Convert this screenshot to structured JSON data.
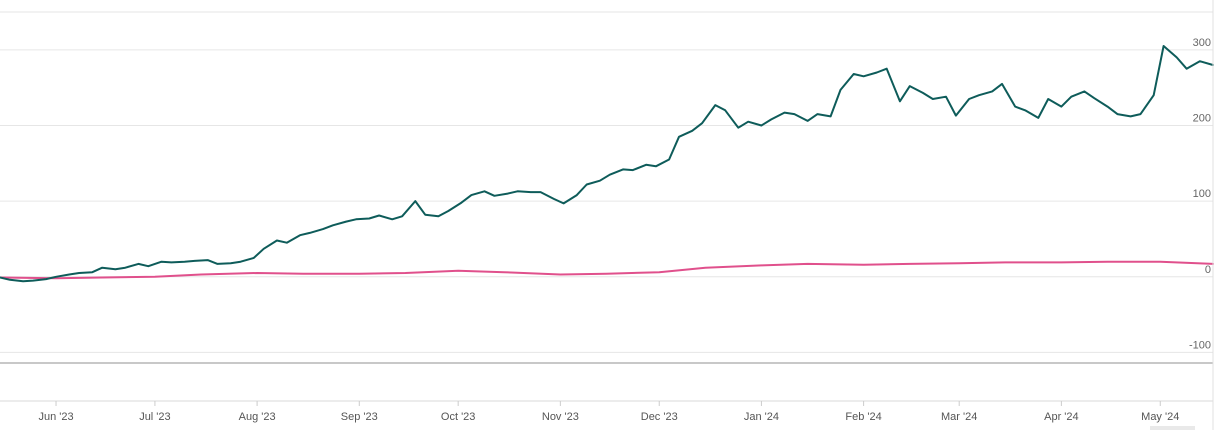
{
  "chart_data": {
    "type": "line",
    "title": "",
    "xlabel": "",
    "ylabel": "",
    "x_range": [
      "2023-05-15",
      "2024-05-17"
    ],
    "ylim": [
      -110,
      350
    ],
    "y_ticks": [
      {
        "value": 300,
        "label": "300"
      },
      {
        "value": 200,
        "label": "200"
      },
      {
        "value": 100,
        "label": "100"
      },
      {
        "value": 0,
        "label": "0"
      },
      {
        "value": -100,
        "label": "-100"
      }
    ],
    "x_ticks": [
      {
        "date": "2023-06-01",
        "label": "Jun '23"
      },
      {
        "date": "2023-07-01",
        "label": "Jul '23"
      },
      {
        "date": "2023-08-01",
        "label": "Aug '23"
      },
      {
        "date": "2023-09-01",
        "label": "Sep '23"
      },
      {
        "date": "2023-10-01",
        "label": "Oct '23"
      },
      {
        "date": "2023-11-01",
        "label": "Nov '23"
      },
      {
        "date": "2023-12-01",
        "label": "Dec '23"
      },
      {
        "date": "2024-01-01",
        "label": "Jan '24"
      },
      {
        "date": "2024-02-01",
        "label": "Feb '24"
      },
      {
        "date": "2024-03-01",
        "label": "Mar '24"
      },
      {
        "date": "2024-04-01",
        "label": "Apr '24"
      },
      {
        "date": "2024-05-01",
        "label": "May '24"
      }
    ],
    "grid": true,
    "series": [
      {
        "color": "#0e5c5a",
        "points": [
          [
            "2023-05-15",
            -1
          ],
          [
            "2023-05-18",
            -4
          ],
          [
            "2023-05-22",
            -6
          ],
          [
            "2023-05-25",
            -5
          ],
          [
            "2023-05-29",
            -3
          ],
          [
            "2023-06-01",
            0
          ],
          [
            "2023-06-05",
            3
          ],
          [
            "2023-06-08",
            5
          ],
          [
            "2023-06-12",
            6
          ],
          [
            "2023-06-15",
            12
          ],
          [
            "2023-06-19",
            10
          ],
          [
            "2023-06-22",
            12
          ],
          [
            "2023-06-26",
            17
          ],
          [
            "2023-06-29",
            14
          ],
          [
            "2023-07-03",
            20
          ],
          [
            "2023-07-06",
            19
          ],
          [
            "2023-07-10",
            20
          ],
          [
            "2023-07-13",
            21
          ],
          [
            "2023-07-17",
            22
          ],
          [
            "2023-07-20",
            17
          ],
          [
            "2023-07-24",
            18
          ],
          [
            "2023-07-27",
            20
          ],
          [
            "2023-07-31",
            25
          ],
          [
            "2023-08-03",
            37
          ],
          [
            "2023-08-07",
            48
          ],
          [
            "2023-08-10",
            45
          ],
          [
            "2023-08-14",
            55
          ],
          [
            "2023-08-17",
            58
          ],
          [
            "2023-08-21",
            63
          ],
          [
            "2023-08-24",
            68
          ],
          [
            "2023-08-28",
            73
          ],
          [
            "2023-08-31",
            76
          ],
          [
            "2023-09-04",
            77
          ],
          [
            "2023-09-07",
            81
          ],
          [
            "2023-09-11",
            76
          ],
          [
            "2023-09-14",
            80
          ],
          [
            "2023-09-18",
            100
          ],
          [
            "2023-09-21",
            82
          ],
          [
            "2023-09-25",
            80
          ],
          [
            "2023-09-28",
            87
          ],
          [
            "2023-10-02",
            98
          ],
          [
            "2023-10-05",
            108
          ],
          [
            "2023-10-09",
            113
          ],
          [
            "2023-10-12",
            107
          ],
          [
            "2023-10-16",
            110
          ],
          [
            "2023-10-19",
            113
          ],
          [
            "2023-10-23",
            112
          ],
          [
            "2023-10-26",
            112
          ],
          [
            "2023-10-30",
            103
          ],
          [
            "2023-11-02",
            97
          ],
          [
            "2023-11-06",
            108
          ],
          [
            "2023-11-09",
            122
          ],
          [
            "2023-11-13",
            127
          ],
          [
            "2023-11-16",
            135
          ],
          [
            "2023-11-20",
            142
          ],
          [
            "2023-11-23",
            141
          ],
          [
            "2023-11-27",
            148
          ],
          [
            "2023-11-30",
            146
          ],
          [
            "2023-12-04",
            155
          ],
          [
            "2023-12-07",
            185
          ],
          [
            "2023-12-11",
            193
          ],
          [
            "2023-12-14",
            203
          ],
          [
            "2023-12-18",
            227
          ],
          [
            "2023-12-21",
            220
          ],
          [
            "2023-12-25",
            197
          ],
          [
            "2023-12-28",
            205
          ],
          [
            "2024-01-01",
            200
          ],
          [
            "2024-01-04",
            208
          ],
          [
            "2024-01-08",
            217
          ],
          [
            "2024-01-11",
            215
          ],
          [
            "2024-01-15",
            206
          ],
          [
            "2024-01-18",
            215
          ],
          [
            "2024-01-22",
            212
          ],
          [
            "2024-01-25",
            247
          ],
          [
            "2024-01-29",
            268
          ],
          [
            "2024-02-01",
            265
          ],
          [
            "2024-02-05",
            270
          ],
          [
            "2024-02-08",
            275
          ],
          [
            "2024-02-12",
            232
          ],
          [
            "2024-02-15",
            252
          ],
          [
            "2024-02-19",
            243
          ],
          [
            "2024-02-22",
            235
          ],
          [
            "2024-02-26",
            238
          ],
          [
            "2024-02-29",
            213
          ],
          [
            "2024-03-04",
            235
          ],
          [
            "2024-03-07",
            240
          ],
          [
            "2024-03-11",
            245
          ],
          [
            "2024-03-14",
            255
          ],
          [
            "2024-03-18",
            225
          ],
          [
            "2024-03-21",
            220
          ],
          [
            "2024-03-25",
            210
          ],
          [
            "2024-03-28",
            235
          ],
          [
            "2024-04-01",
            225
          ],
          [
            "2024-04-04",
            238
          ],
          [
            "2024-04-08",
            245
          ],
          [
            "2024-04-11",
            236
          ],
          [
            "2024-04-15",
            225
          ],
          [
            "2024-04-18",
            215
          ],
          [
            "2024-04-22",
            212
          ],
          [
            "2024-04-25",
            215
          ],
          [
            "2024-04-29",
            240
          ],
          [
            "2024-05-02",
            305
          ],
          [
            "2024-05-06",
            290
          ],
          [
            "2024-05-09",
            275
          ],
          [
            "2024-05-13",
            285
          ],
          [
            "2024-05-17",
            280
          ]
        ]
      },
      {
        "color": "#e0508c",
        "points": [
          [
            "2023-05-15",
            -1
          ],
          [
            "2023-06-01",
            -2
          ],
          [
            "2023-06-15",
            -1
          ],
          [
            "2023-07-01",
            0
          ],
          [
            "2023-07-15",
            3
          ],
          [
            "2023-08-01",
            5
          ],
          [
            "2023-08-15",
            4
          ],
          [
            "2023-09-01",
            4
          ],
          [
            "2023-09-15",
            5
          ],
          [
            "2023-10-01",
            8
          ],
          [
            "2023-10-15",
            6
          ],
          [
            "2023-11-01",
            3
          ],
          [
            "2023-11-15",
            4
          ],
          [
            "2023-12-01",
            6
          ],
          [
            "2023-12-15",
            12
          ],
          [
            "2024-01-01",
            15
          ],
          [
            "2024-01-15",
            17
          ],
          [
            "2024-02-01",
            16
          ],
          [
            "2024-02-15",
            17
          ],
          [
            "2024-03-01",
            18
          ],
          [
            "2024-03-15",
            19
          ],
          [
            "2024-04-01",
            19
          ],
          [
            "2024-04-15",
            20
          ],
          [
            "2024-05-01",
            20
          ],
          [
            "2024-05-17",
            17
          ]
        ]
      }
    ]
  }
}
